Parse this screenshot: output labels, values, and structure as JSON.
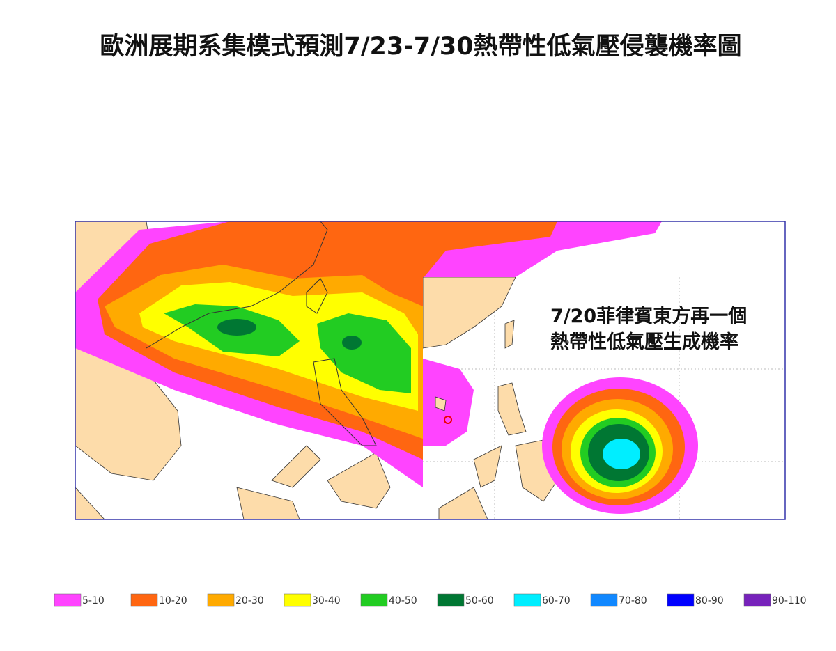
{
  "title": "歐洲展期系集模式預測7/23-7/30熱帶性低氣壓侵襲機率圖",
  "inset_note": [
    "7/20菲律賓東方再一個",
    "熱帶性低氣壓生成機率"
  ],
  "legend": [
    {
      "label": "5-10",
      "color": "#ff44ff"
    },
    {
      "label": "10-20",
      "color": "#ff6611"
    },
    {
      "label": "20-30",
      "color": "#ffaa00"
    },
    {
      "label": "30-40",
      "color": "#ffff00"
    },
    {
      "label": "40-50",
      "color": "#22cc22"
    },
    {
      "label": "50-60",
      "color": "#007733"
    },
    {
      "label": "60-70",
      "color": "#00eeff"
    },
    {
      "label": "70-80",
      "color": "#1188ff"
    },
    {
      "label": "80-90",
      "color": "#0000ff"
    },
    {
      "label": "90-110",
      "color": "#7722bb"
    }
  ]
}
